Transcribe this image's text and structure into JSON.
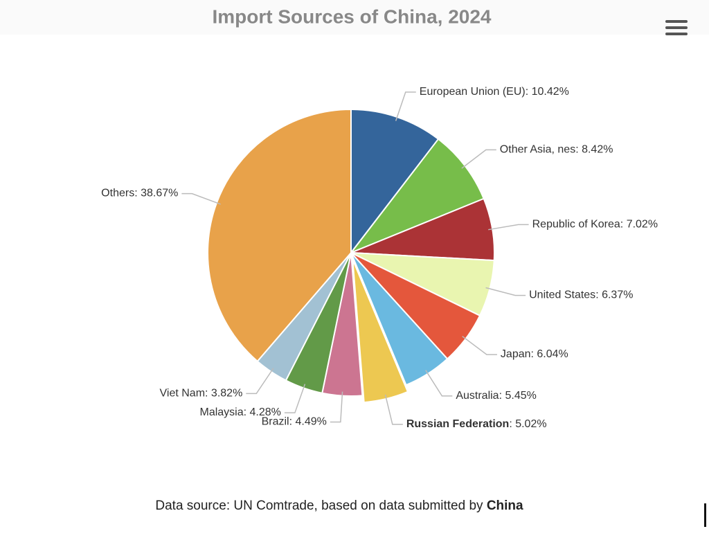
{
  "chart_data": {
    "type": "pie",
    "title": "Import Sources of China, 2024",
    "categories": [
      "European Union (EU)",
      "Other Asia, nes",
      "Republic of Korea",
      "United States",
      "Japan",
      "Australia",
      "Russian Federation",
      "Brazil",
      "Malaysia",
      "Viet Nam",
      "Others"
    ],
    "values": [
      10.42,
      8.42,
      7.02,
      6.37,
      6.04,
      5.45,
      5.02,
      4.49,
      4.28,
      3.82,
      38.67
    ],
    "value_labels": [
      "10.42%",
      "8.42%",
      "7.02%",
      "6.37%",
      "6.04%",
      "5.45%",
      "5.02%",
      "4.49%",
      "4.28%",
      "3.82%",
      "38.67%"
    ],
    "label_separator": ": ",
    "colors": [
      "#34659b",
      "#77bd4a",
      "#ab3336",
      "#e9f5b0",
      "#e4573c",
      "#6ab9e0",
      "#edc851",
      "#cc7591",
      "#629a48",
      "#a2c1d3",
      "#e8a24a"
    ],
    "highlight_index": 6,
    "credits": {
      "text": "Data source: UN Comtrade, based on data submitted by ",
      "reporter": "China"
    }
  }
}
